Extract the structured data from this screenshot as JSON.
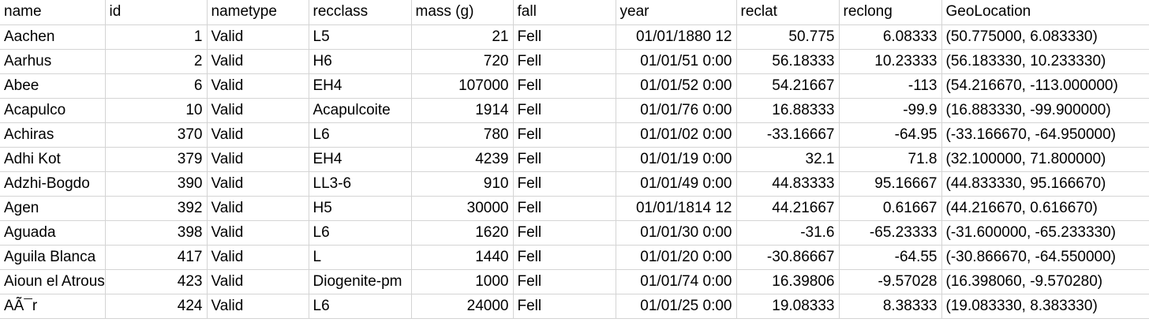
{
  "columns": [
    {
      "label": "name",
      "align": "txt"
    },
    {
      "label": "id",
      "align": "num"
    },
    {
      "label": "nametype",
      "align": "txt"
    },
    {
      "label": "recclass",
      "align": "txt"
    },
    {
      "label": "mass (g)",
      "align": "num"
    },
    {
      "label": "fall",
      "align": "txt"
    },
    {
      "label": "year",
      "align": "num"
    },
    {
      "label": "reclat",
      "align": "num"
    },
    {
      "label": "reclong",
      "align": "num"
    },
    {
      "label": "GeoLocation",
      "align": "txt"
    }
  ],
  "rows": [
    [
      "Aachen",
      "1",
      "Valid",
      "L5",
      "21",
      "Fell",
      "01/01/1880 12",
      "50.775",
      "6.08333",
      "(50.775000, 6.083330)"
    ],
    [
      "Aarhus",
      "2",
      "Valid",
      "H6",
      "720",
      "Fell",
      "01/01/51 0:00",
      "56.18333",
      "10.23333",
      "(56.183330, 10.233330)"
    ],
    [
      "Abee",
      "6",
      "Valid",
      "EH4",
      "107000",
      "Fell",
      "01/01/52 0:00",
      "54.21667",
      "-113",
      "(54.216670, -113.000000)"
    ],
    [
      "Acapulco",
      "10",
      "Valid",
      "Acapulcoite",
      "1914",
      "Fell",
      "01/01/76 0:00",
      "16.88333",
      "-99.9",
      "(16.883330, -99.900000)"
    ],
    [
      "Achiras",
      "370",
      "Valid",
      "L6",
      "780",
      "Fell",
      "01/01/02 0:00",
      "-33.16667",
      "-64.95",
      "(-33.166670, -64.950000)"
    ],
    [
      "Adhi Kot",
      "379",
      "Valid",
      "EH4",
      "4239",
      "Fell",
      "01/01/19 0:00",
      "32.1",
      "71.8",
      "(32.100000, 71.800000)"
    ],
    [
      "Adzhi-Bogdo",
      "390",
      "Valid",
      "LL3-6",
      "910",
      "Fell",
      "01/01/49 0:00",
      "44.83333",
      "95.16667",
      "(44.833330, 95.166670)"
    ],
    [
      "Agen",
      "392",
      "Valid",
      "H5",
      "30000",
      "Fell",
      "01/01/1814 12",
      "44.21667",
      "0.61667",
      "(44.216670, 0.616670)"
    ],
    [
      "Aguada",
      "398",
      "Valid",
      "L6",
      "1620",
      "Fell",
      "01/01/30 0:00",
      "-31.6",
      "-65.23333",
      "(-31.600000, -65.233330)"
    ],
    [
      "Aguila Blanca",
      "417",
      "Valid",
      "L",
      "1440",
      "Fell",
      "01/01/20 0:00",
      "-30.86667",
      "-64.55",
      "(-30.866670, -64.550000)"
    ],
    [
      "Aioun el Atrouss",
      "423",
      "Valid",
      "Diogenite-pm",
      "1000",
      "Fell",
      "01/01/74 0:00",
      "16.39806",
      "-9.57028",
      "(16.398060, -9.570280)"
    ],
    [
      "AÃ¯r",
      "424",
      "Valid",
      "L6",
      "24000",
      "Fell",
      "01/01/25 0:00",
      "19.08333",
      "8.38333",
      "(19.083330, 8.383330)"
    ]
  ]
}
